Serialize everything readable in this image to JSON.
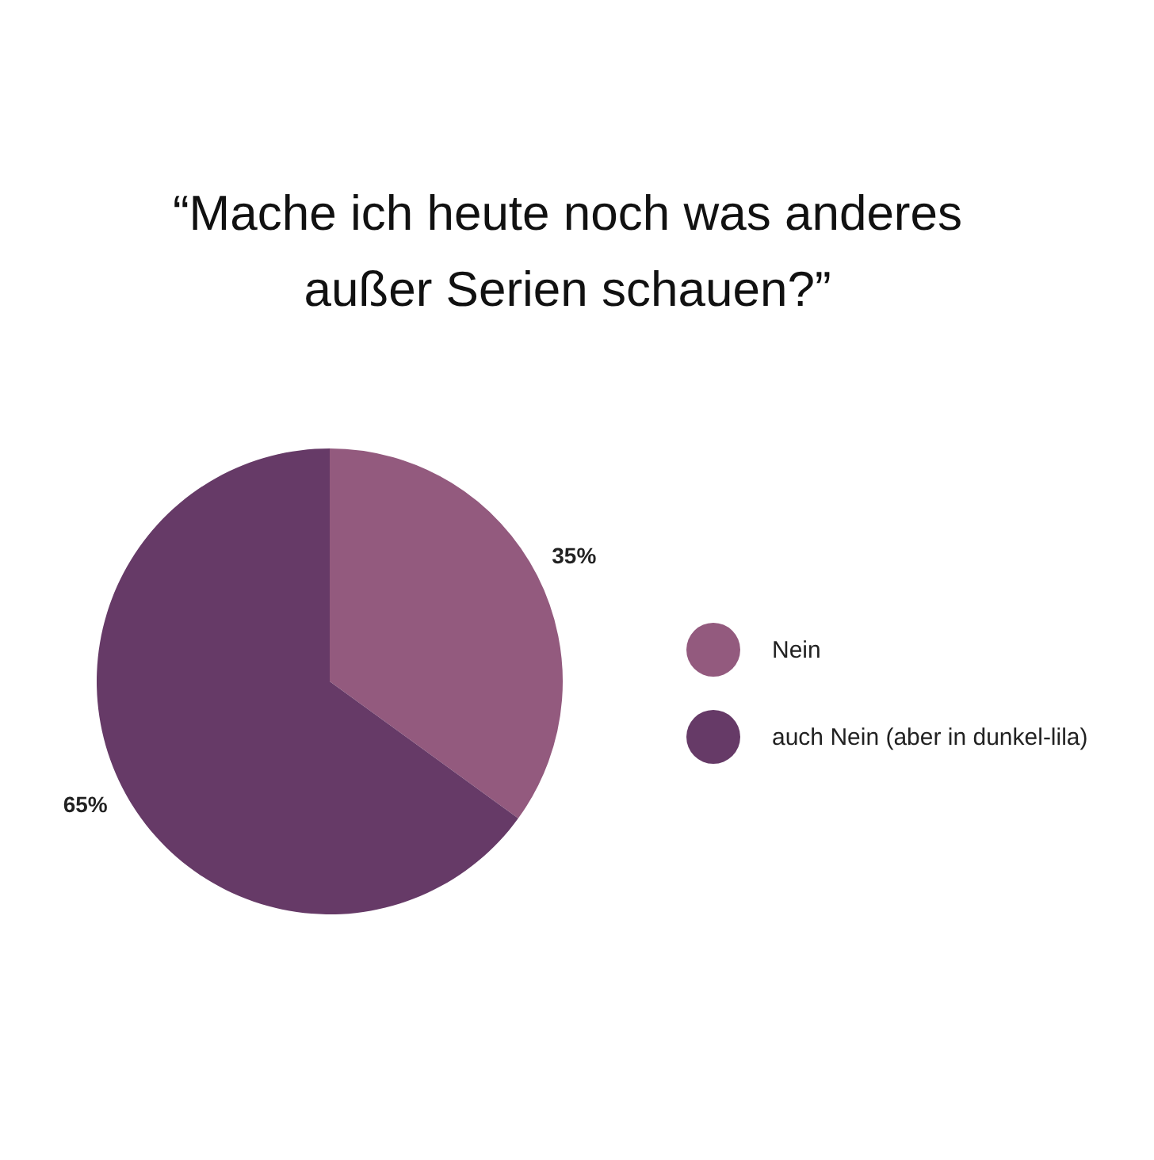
{
  "chart_data": {
    "type": "pie",
    "title": "“Mache ich heute noch was anderes außer Serien schauen?”",
    "categories": [
      "Nein",
      "auch Nein (aber in dunkel-lila)"
    ],
    "values": [
      35,
      65
    ],
    "colors": [
      "#935a7e",
      "#663a67"
    ],
    "value_labels": [
      "35%",
      "65%"
    ],
    "legend": "right"
  }
}
